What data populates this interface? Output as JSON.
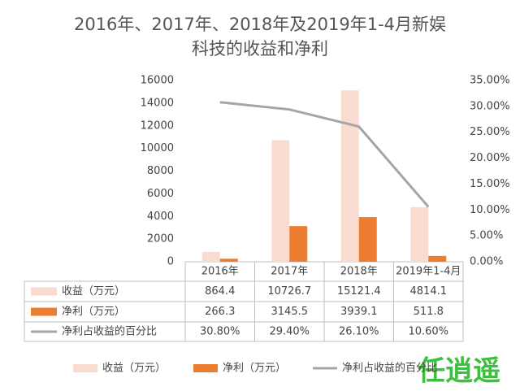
{
  "chart_data": {
    "type": "bar-line-table",
    "title": "2016年、2017年、2018年及2019年1-4月新娱",
    "subtitle": "科技的收益和净利",
    "categories": [
      "2016年",
      "2017年",
      "2018年",
      "2019年1-4月"
    ],
    "series": [
      {
        "name": "收益（万元）",
        "color": "#f9dbcf",
        "type": "bar",
        "values": [
          864.4,
          10726.7,
          15121.4,
          4814.1
        ]
      },
      {
        "name": "净利（万元）",
        "color": "#ed7d31",
        "type": "bar",
        "values": [
          266.3,
          3145.5,
          3939.1,
          511.8
        ]
      },
      {
        "name": "净利占收益的百分比",
        "color": "#a5a5a5",
        "type": "line",
        "axis": "y2",
        "values": [
          30.8,
          29.4,
          26.1,
          10.6
        ],
        "value_labels": [
          "30.80%",
          "29.40%",
          "26.10%",
          "10.60%"
        ]
      }
    ],
    "ylim": [
      0,
      16000
    ],
    "yticks": [
      0,
      2000,
      4000,
      6000,
      8000,
      10000,
      12000,
      14000,
      16000
    ],
    "y2lim": [
      0,
      35
    ],
    "y2ticks": [
      {
        "value": 0,
        "label": "0.00%"
      },
      {
        "value": 5,
        "label": "5.00%"
      },
      {
        "value": 10,
        "label": "10.00%"
      },
      {
        "value": 15,
        "label": "15.00%"
      },
      {
        "value": 20,
        "label": "20.00%"
      },
      {
        "value": 25,
        "label": "25.00%"
      },
      {
        "value": 30,
        "label": "30.00%"
      },
      {
        "value": 35,
        "label": "35.00%"
      }
    ],
    "grid": false,
    "legend": "bottom",
    "watermark": "任逍遥"
  }
}
